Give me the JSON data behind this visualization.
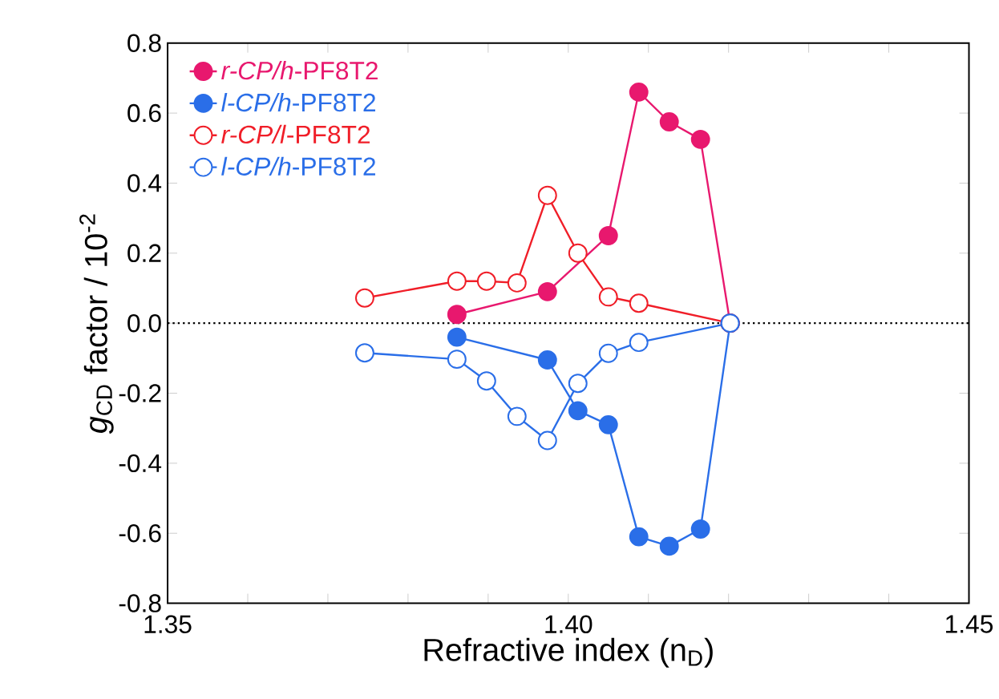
{
  "chart_data": {
    "type": "line",
    "xlabel": "Refractive index (n$_{D}$)",
    "ylabel": "*g*$_{CD}$ factor / 10$^{-2}$",
    "xlim": [
      1.35,
      1.45
    ],
    "ylim": [
      -0.8,
      0.8
    ],
    "xticks": [
      1.35,
      {
        "value": 1.36,
        "label": null
      },
      {
        "value": 1.37,
        "label": null
      },
      {
        "value": 1.38,
        "label": null
      },
      {
        "value": 1.39,
        "label": null
      },
      {
        "value": 1.4,
        "label": "1.40"
      },
      {
        "value": 1.41,
        "label": null
      },
      {
        "value": 1.42,
        "label": null
      },
      {
        "value": 1.43,
        "label": null
      },
      {
        "value": 1.44,
        "label": null
      },
      1.45
    ],
    "yticks": [
      -0.8,
      -0.6,
      -0.4,
      -0.2,
      {
        "value": 0,
        "label": "0.0"
      },
      0.2,
      0.4,
      0.6,
      0.8
    ],
    "grid": false,
    "legend": "top left",
    "line_style": "solid",
    "ref_lines": [
      {
        "axis": "y",
        "value": 0,
        "line_style": "dotted",
        "color": "#000000"
      }
    ],
    "series": [
      {
        "name": "*r-CP/h*-PF8T2",
        "color": "#e8186e",
        "marker": "circle",
        "x": [
          1.3861,
          1.3974,
          1.405,
          1.4088,
          1.4126,
          1.4165,
          1.4202
        ],
        "values": [
          0.025,
          0.09,
          0.25,
          0.66,
          0.575,
          0.525,
          0
        ]
      },
      {
        "name": "*l-CP/h*-PF8T2",
        "color": "#2a6ee8",
        "marker": "circle",
        "x": [
          1.3861,
          1.3974,
          1.4012,
          1.405,
          1.4088,
          1.4126,
          1.4165,
          1.4202
        ],
        "values": [
          -0.04,
          -0.105,
          -0.25,
          -0.29,
          -0.61,
          -0.637,
          -0.588,
          0
        ]
      },
      {
        "name": "*r-CP/l*-PF8T2",
        "color": "#f01e28",
        "marker": "open circle",
        "x": [
          1.3746,
          1.3861,
          1.3898,
          1.3936,
          1.3974,
          1.4012,
          1.405,
          1.4088,
          1.4202
        ],
        "values": [
          0.072,
          0.12,
          0.12,
          0.115,
          0.365,
          0.2,
          0.075,
          0.057,
          0
        ]
      },
      {
        "name": "*l-CP/h*-PF8T2",
        "color": "#2a6ee8",
        "marker": "open circle",
        "x": [
          1.3746,
          1.3861,
          1.3898,
          1.3936,
          1.3974,
          1.4012,
          1.405,
          1.4088,
          1.4202
        ],
        "values": [
          -0.085,
          -0.103,
          -0.165,
          -0.266,
          -0.335,
          -0.172,
          -0.086,
          -0.055,
          0
        ]
      }
    ]
  }
}
